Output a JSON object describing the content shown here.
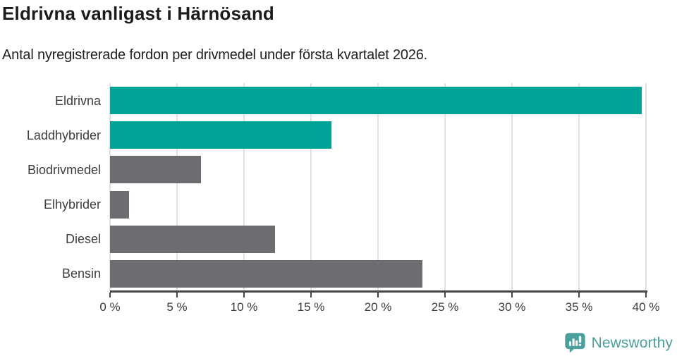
{
  "header": {
    "title": "Eldrivna vanligast i Härnösand",
    "subtitle": "Antal nyregistrerade fordon per drivmedel under första kvartalet 2026."
  },
  "chart_data": {
    "type": "bar",
    "orientation": "horizontal",
    "title": "Eldrivna vanligast i Härnösand",
    "subtitle": "Antal nyregistrerade fordon per drivmedel under första kvartalet 2026.",
    "categories": [
      "Eldrivna",
      "Laddhybrider",
      "Biodrivmedel",
      "Elhybrider",
      "Diesel",
      "Bensin"
    ],
    "values": [
      39.7,
      16.5,
      6.8,
      1.4,
      12.3,
      23.3
    ],
    "unit": "%",
    "xlabel": "",
    "ylabel": "",
    "xlim": [
      0,
      40
    ],
    "x_ticks": [
      0,
      5,
      10,
      15,
      20,
      25,
      30,
      35,
      40
    ],
    "x_tick_labels": [
      "0 %",
      "5 %",
      "10 %",
      "15 %",
      "20 %",
      "25 %",
      "30 %",
      "35 %",
      "40 %"
    ],
    "bar_colors": [
      "#00a396",
      "#00a396",
      "#6c6c71",
      "#6c6c71",
      "#6c6c71",
      "#6c6c71"
    ],
    "grid": "vertical",
    "legend": "none"
  },
  "colors": {
    "accent": "#00a396",
    "neutral": "#6c6c71",
    "gridline": "#e1e1e3",
    "axis": "#454549",
    "brand": "#4aa09d"
  },
  "footer": {
    "brand": "Newsworthy",
    "logo_icon": "newsworthy-chart-bubble-icon"
  }
}
